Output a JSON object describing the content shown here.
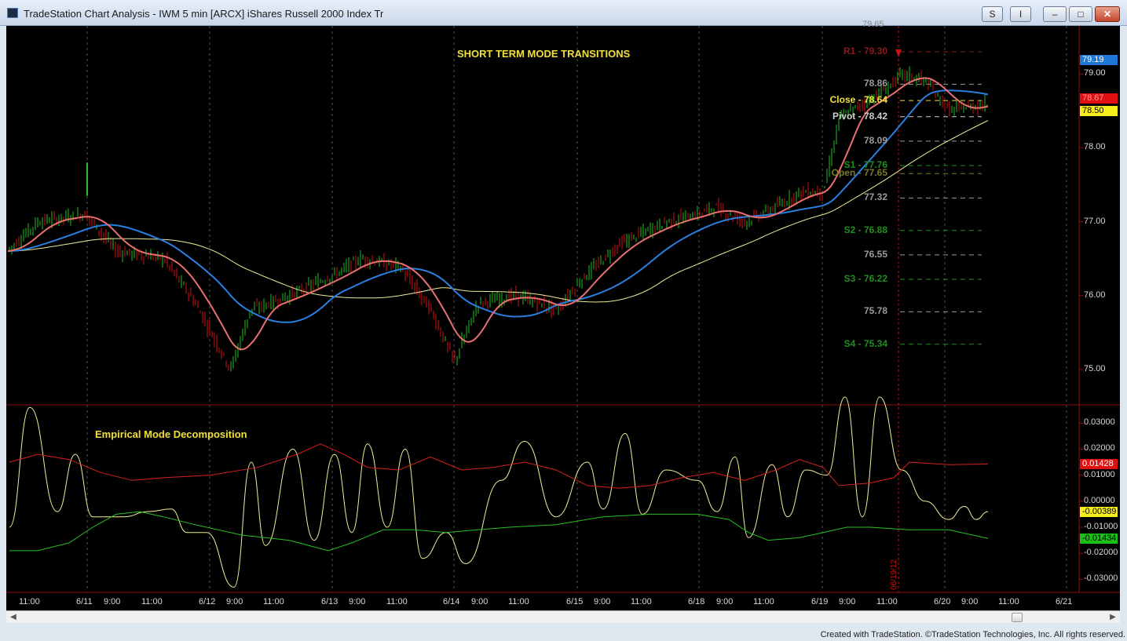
{
  "window": {
    "title": "TradeStation Chart Analysis - IWM 5 min [ARCX] iShares Russell 2000 Index Tr",
    "buttons": {
      "s": "S",
      "i": "I",
      "minimize": "–",
      "maximize": "□",
      "close": "✕"
    }
  },
  "chart": {
    "title": "SHORT TERM MODE TRANSITIONS",
    "subtitle": "Empirical Mode Decomposition",
    "pivots": [
      {
        "label": "R1 - 79.30",
        "price": 79.3,
        "color": "#8b1a1a"
      },
      {
        "label": "78.86",
        "price": 78.86,
        "color": "#9a9a9a"
      },
      {
        "label": "Close - 78.64",
        "price": 78.64,
        "color": "#f2e03a"
      },
      {
        "label": "Pivot - 78.42",
        "price": 78.42,
        "color": "#cfcfcf"
      },
      {
        "label": "78.09",
        "price": 78.09,
        "color": "#9a9a9a"
      },
      {
        "label": "S1 - 77.76",
        "price": 77.76,
        "color": "#1f8f1f"
      },
      {
        "label": "Open - 77.65",
        "price": 77.65,
        "color": "#7a7a2a"
      },
      {
        "label": "77.32",
        "price": 77.32,
        "color": "#9a9a9a"
      },
      {
        "label": "S2 - 76.88",
        "price": 76.88,
        "color": "#1f8f1f"
      },
      {
        "label": "76.55",
        "price": 76.55,
        "color": "#9a9a9a"
      },
      {
        "label": "S3 - 76.22",
        "price": 76.22,
        "color": "#1f8f1f"
      },
      {
        "label": "75.78",
        "price": 75.78,
        "color": "#9a9a9a"
      },
      {
        "label": "S4 - 75.34",
        "price": 75.34,
        "color": "#1f8f1f"
      }
    ],
    "price_axis": {
      "range": [
        74.52,
        79.65
      ],
      "ticks": [
        "79.00",
        "78.00",
        "77.00",
        "76.00",
        "75.00"
      ],
      "tick_values": [
        79.0,
        78.0,
        77.0,
        76.0,
        75.0
      ],
      "top_partial": "79.65"
    },
    "price_flags": [
      {
        "label": "79.19",
        "value": 79.19,
        "bg": "#1f77d8",
        "fg": "#ffffff"
      },
      {
        "label": "78.67",
        "value": 78.67,
        "bg": "#e01010",
        "fg": "#ff9a9a"
      },
      {
        "label": "78.50",
        "value": 78.5,
        "bg": "#f5ee1a",
        "fg": "#000000"
      }
    ],
    "indicator_axis": {
      "range": [
        -0.035,
        0.037
      ],
      "ticks": [
        "0.03000",
        "0.02000",
        "0.01000",
        "0.00000",
        "-0.01000",
        "-0.02000",
        "-0.03000"
      ],
      "tick_values": [
        0.03,
        0.02,
        0.01,
        0.0,
        -0.01,
        -0.02,
        -0.03
      ]
    },
    "indicator_flags": [
      {
        "label": "0.01428",
        "value": 0.01428,
        "bg": "#e01010",
        "fg": "#ffffff"
      },
      {
        "label": "-0.00389",
        "value": -0.00389,
        "bg": "#f5ee1a",
        "fg": "#000000"
      },
      {
        "label": "-0.01434",
        "value": -0.01434,
        "bg": "#18c018",
        "fg": "#000000"
      }
    ],
    "x_axis": {
      "labels": [
        "11:00",
        "6/11",
        "9:00",
        "11:00",
        "6/12",
        "9:00",
        "11:00",
        "6/13",
        "9:00",
        "11:00",
        "6/14",
        "9:00",
        "11:00",
        "6/15",
        "9:00",
        "11:00",
        "6/18",
        "9:00",
        "11:00",
        "6/19",
        "9:00",
        "11:00",
        "6/20",
        "9:00",
        "11:00",
        "6/21"
      ]
    },
    "cursor_date": "06/19/12",
    "colors": {
      "up_bar": "#22c022",
      "down_bar": "#d01010",
      "blue_ma": "#2a7fe0",
      "pink_ma": "#e87070",
      "yellow_ma": "#f0ec9a",
      "emd_yellow": "#f3ef9a",
      "emd_red": "#d62020",
      "emd_green": "#25c025"
    }
  },
  "footer": {
    "copyright": "Created with TradeStation. ©TradeStation Technologies, Inc. All rights reserved."
  }
}
